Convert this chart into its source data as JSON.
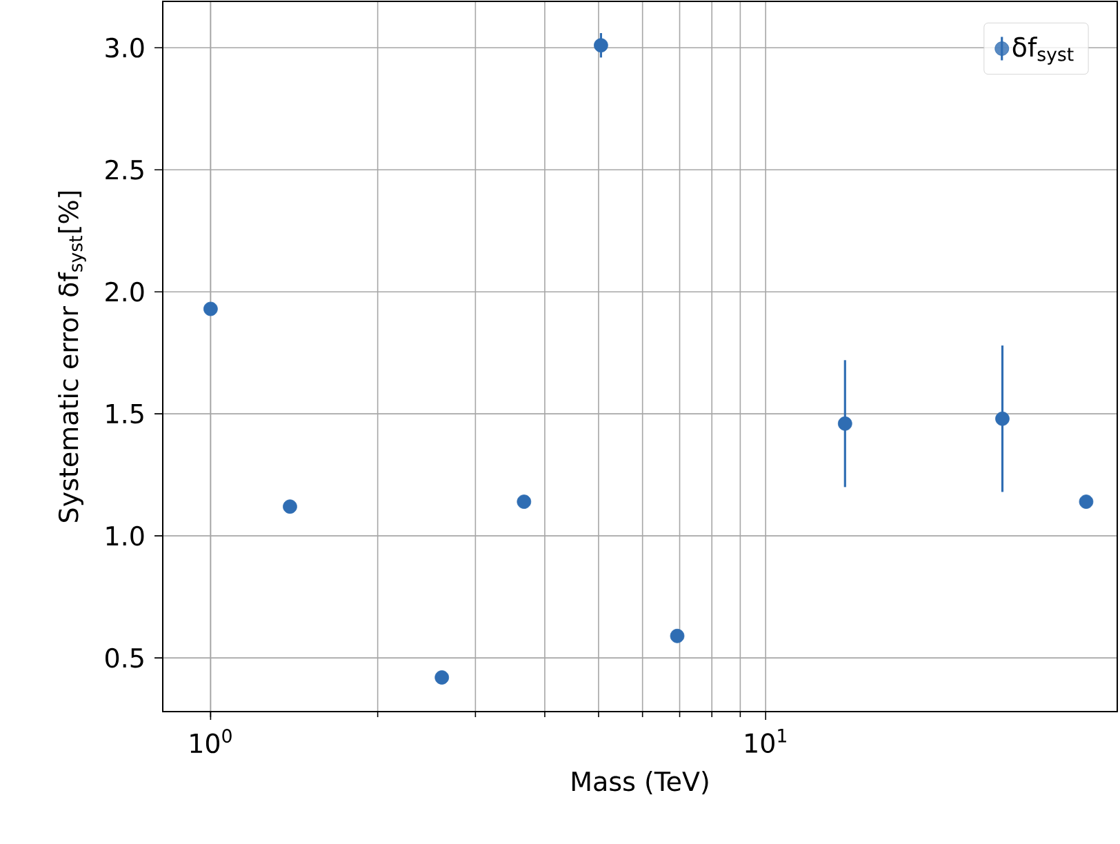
{
  "chart_data": {
    "type": "scatter",
    "xlabel": "Mass (TeV)",
    "ylabel": "Systematic error δf$_{syst}$[%]",
    "x": [
      1.0,
      1.39,
      2.61,
      3.67,
      5.05,
      6.93,
      13.9,
      26.7,
      37.8
    ],
    "series": [
      {
        "name": "δf$_{syst}$",
        "color": "#2f6db3",
        "values": [
          1.93,
          1.12,
          0.42,
          1.14,
          3.01,
          0.59,
          1.46,
          1.48,
          1.14
        ],
        "errors": [
          null,
          null,
          null,
          null,
          0.05,
          null,
          0.26,
          0.3,
          null
        ]
      }
    ],
    "log": "x",
    "xlim": [
      0.82,
      43
    ],
    "ylim": [
      0.28,
      3.19
    ],
    "xticks": [
      {
        "value": 1,
        "label": "10$^{0}$"
      },
      {
        "value": 10,
        "label": "10$^{1}$"
      }
    ],
    "yticks": [
      0.5,
      {
        "value": 1,
        "label": "1.0"
      },
      1.5,
      {
        "value": 2,
        "label": "2.0"
      },
      2.5,
      {
        "value": 3,
        "label": "3.0"
      }
    ],
    "grid": true,
    "legend": "top right",
    "marker": "circle"
  }
}
